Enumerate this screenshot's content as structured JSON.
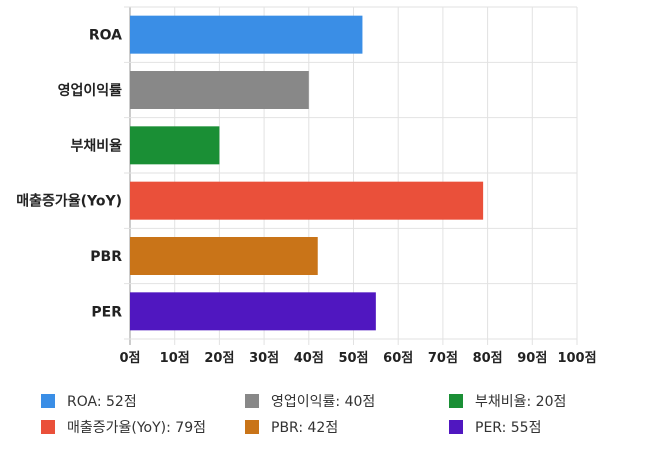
{
  "chart_data": {
    "type": "bar",
    "orientation": "horizontal",
    "categories": [
      "ROA",
      "영업이익률",
      "부채비율",
      "매출증가율(YoY)",
      "PBR",
      "PER"
    ],
    "values": [
      52,
      40,
      20,
      79,
      42,
      55
    ],
    "colors": [
      "#3a8ee6",
      "#888888",
      "#1a8f35",
      "#ea503a",
      "#c97418",
      "#5017c0"
    ],
    "xlim": [
      0,
      100
    ],
    "xticks": [
      "0점",
      "10점",
      "20점",
      "30점",
      "40점",
      "50점",
      "60점",
      "70점",
      "80점",
      "90점",
      "100점"
    ],
    "grid": true,
    "legend": {
      "position": "bottom",
      "items": [
        "ROA: 52점",
        "매출증가율(YoY): 79점",
        "영업이익률: 40점",
        "PBR: 42점",
        "부채비율: 20점",
        "PER: 55점"
      ]
    }
  }
}
